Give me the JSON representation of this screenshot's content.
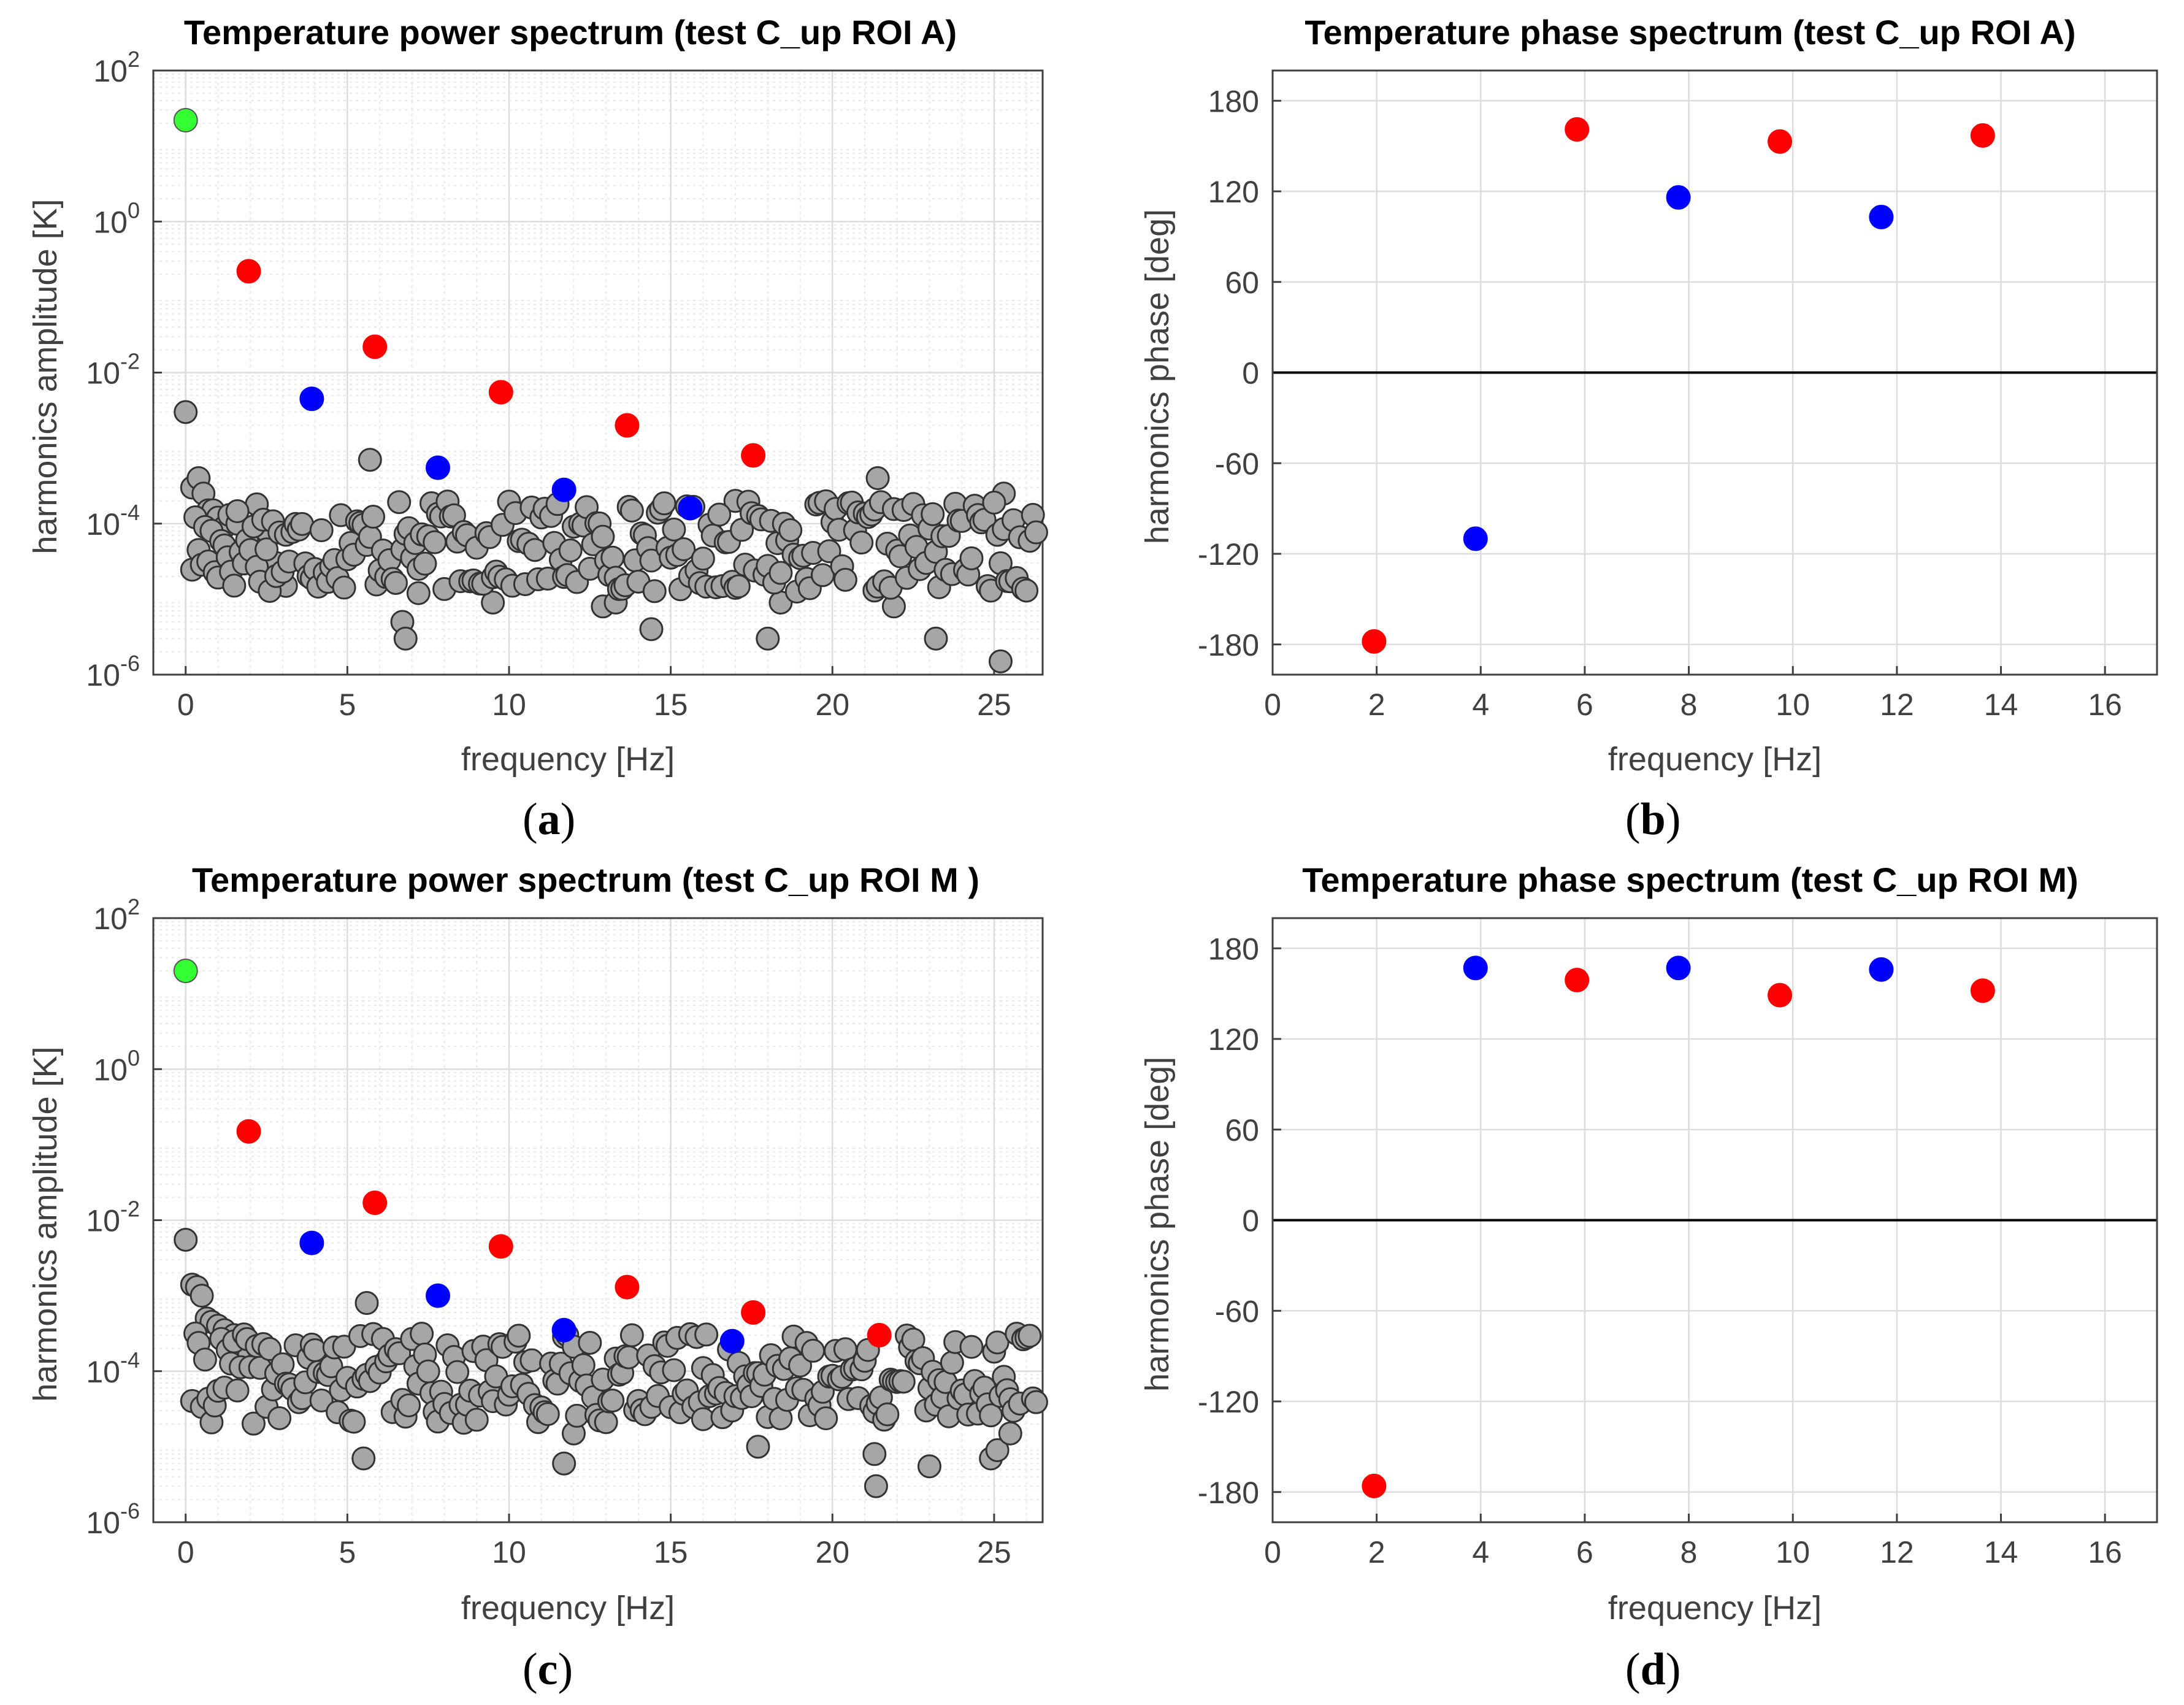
{
  "figure": {
    "panels": [
      "(a)",
      "(b)",
      "(c)",
      "(d)"
    ],
    "colors": {
      "fundamental": "#ff0000",
      "even_harmonic": "#0000ff",
      "mean": "#33ff33",
      "noise": "#a6a6a6",
      "marker_edge": "#333333",
      "grid": "#dcdcdc",
      "axis": "#404040"
    }
  },
  "chart_data": [
    {
      "panel": "(a)",
      "type": "scatter",
      "title": "Temperature power spectrum (test C_up ROI A)",
      "xlabel": "frequency [Hz]",
      "ylabel": "harmonics amplitude [K]",
      "xlim": [
        -1,
        26.5
      ],
      "ylim_log10": [
        -6,
        2
      ],
      "yscale": "log",
      "grid": true,
      "xticks": [
        0,
        5,
        10,
        15,
        20,
        25
      ],
      "yticks": [
        "10^-6",
        "10^-4",
        "10^-2",
        "10^0",
        "10^2"
      ],
      "series": [
        {
          "role": "mean",
          "color": "#33ff33",
          "points": [
            [
              0,
              22
            ]
          ]
        },
        {
          "role": "odd",
          "color": "#ff0000",
          "points": [
            [
              1.95,
              0.22
            ],
            [
              5.85,
              0.022
            ],
            [
              9.75,
              0.0055
            ],
            [
              13.65,
              0.002
            ],
            [
              17.55,
              0.0008
            ]
          ]
        },
        {
          "role": "even",
          "color": "#0000ff",
          "points": [
            [
              3.9,
              0.0045
            ],
            [
              7.8,
              0.00055
            ],
            [
              11.7,
              0.00028
            ],
            [
              15.6,
              0.00016
            ]
          ]
        },
        {
          "role": "noise",
          "color": "#a6a6a6",
          "seed": 17,
          "baseline": 5e-05,
          "points": [
            [
              0,
              0.003
            ],
            [
              0.2,
              0.0003
            ],
            [
              0.4,
              0.0004
            ],
            [
              0.55,
              0.00025
            ],
            [
              0.7,
              0.00015
            ],
            [
              0.85,
              0.00015
            ],
            [
              1.0,
              0.00012
            ],
            [
              1.2,
              9e-05
            ],
            [
              1.35,
              0.00013
            ],
            [
              1.6,
              0.0001
            ],
            [
              2.2,
              0.00018
            ],
            [
              2.5,
              8e-05
            ],
            [
              2.8,
              3e-05
            ],
            [
              3.1,
              1.5e-05
            ],
            [
              5.7,
              0.0007
            ],
            [
              6.7,
              5e-06
            ],
            [
              6.8,
              3e-06
            ],
            [
              7.2,
              1.2e-05
            ],
            [
              9.5,
              9e-06
            ],
            [
              12.9,
              8e-06
            ],
            [
              13.3,
              9e-06
            ],
            [
              14.4,
              4e-06
            ],
            [
              17.0,
              0.0002
            ],
            [
              18.0,
              3e-06
            ],
            [
              18.4,
              9e-06
            ],
            [
              21.4,
              0.0004
            ],
            [
              21.3,
              1.3e-05
            ],
            [
              21.9,
              8e-06
            ],
            [
              23.2,
              3e-06
            ],
            [
              25.2,
              1.5e-06
            ],
            [
              25.3,
              0.00025
            ]
          ]
        }
      ]
    },
    {
      "panel": "(b)",
      "type": "scatter",
      "title": "Temperature phase spectrum (test C_up ROI A)",
      "xlabel": "frequency [Hz]",
      "ylabel": "harmonics phase [deg]",
      "xlim": [
        0,
        17
      ],
      "ylim": [
        -200,
        200
      ],
      "grid": true,
      "xticks": [
        0,
        2,
        4,
        6,
        8,
        10,
        12,
        14,
        16
      ],
      "yticks": [
        -180,
        -120,
        -60,
        0,
        60,
        120,
        180
      ],
      "series": [
        {
          "role": "odd",
          "color": "#ff0000",
          "points": [
            [
              1.95,
              -178
            ],
            [
              5.85,
              161
            ],
            [
              9.75,
              153
            ],
            [
              13.65,
              157
            ]
          ]
        },
        {
          "role": "even",
          "color": "#0000ff",
          "points": [
            [
              3.9,
              -110
            ],
            [
              7.8,
              116
            ],
            [
              11.7,
              103
            ]
          ]
        }
      ]
    },
    {
      "panel": "(c)",
      "type": "scatter",
      "title": "Temperature power spectrum (test C_up ROI M )",
      "xlabel": "frequency [Hz]",
      "ylabel": "harmonics amplitude [K]",
      "xlim": [
        -1,
        26.5
      ],
      "ylim_log10": [
        -6,
        2
      ],
      "yscale": "log",
      "grid": true,
      "xticks": [
        0,
        5,
        10,
        15,
        20,
        25
      ],
      "yticks": [
        "10^-6",
        "10^-4",
        "10^-2",
        "10^0",
        "10^2"
      ],
      "series": [
        {
          "role": "mean",
          "color": "#33ff33",
          "points": [
            [
              0,
              20
            ]
          ]
        },
        {
          "role": "odd",
          "color": "#ff0000",
          "points": [
            [
              1.95,
              0.15
            ],
            [
              5.85,
              0.017
            ],
            [
              9.75,
              0.0045
            ],
            [
              13.65,
              0.0013
            ],
            [
              17.55,
              0.0006
            ],
            [
              21.45,
              0.0003
            ]
          ]
        },
        {
          "role": "even",
          "color": "#0000ff",
          "points": [
            [
              3.9,
              0.005
            ],
            [
              7.8,
              0.001
            ],
            [
              11.7,
              0.00035
            ],
            [
              16.9,
              0.00025
            ]
          ]
        },
        {
          "role": "noise",
          "color": "#a6a6a6",
          "seed": 41,
          "baseline": 8e-05,
          "points": [
            [
              0,
              0.0055
            ],
            [
              0.2,
              0.0014
            ],
            [
              0.35,
              0.0013
            ],
            [
              0.5,
              0.001
            ],
            [
              0.65,
              0.0005
            ],
            [
              0.8,
              0.00045
            ],
            [
              1.0,
              0.0004
            ],
            [
              1.2,
              0.00035
            ],
            [
              1.5,
              0.0003
            ],
            [
              1.7,
              0.0002
            ],
            [
              2.4,
              0.00015
            ],
            [
              5.6,
              0.0008
            ],
            [
              5.5,
              7e-06
            ],
            [
              11.7,
              6e-06
            ],
            [
              12.0,
              1.5e-05
            ],
            [
              16.0,
              0.00011
            ],
            [
              17.7,
              1e-05
            ],
            [
              21.3,
              8e-06
            ],
            [
              21.35,
              3e-06
            ],
            [
              23.0,
              5.5e-06
            ],
            [
              24.9,
              7e-06
            ],
            [
              25.1,
              9e-06
            ],
            [
              25.5,
              1.5e-05
            ]
          ]
        }
      ]
    },
    {
      "panel": "(d)",
      "type": "scatter",
      "title": "Temperature phase spectrum (test C_up ROI M)",
      "xlabel": "frequency [Hz]",
      "ylabel": "harmonics phase [deg]",
      "xlim": [
        0,
        17
      ],
      "ylim": [
        -200,
        200
      ],
      "grid": true,
      "xticks": [
        0,
        2,
        4,
        6,
        8,
        10,
        12,
        14,
        16
      ],
      "yticks": [
        -180,
        -120,
        -60,
        0,
        60,
        120,
        180
      ],
      "series": [
        {
          "role": "odd",
          "color": "#ff0000",
          "points": [
            [
              1.95,
              -176
            ],
            [
              5.85,
              159
            ],
            [
              9.75,
              149
            ],
            [
              13.65,
              152
            ]
          ]
        },
        {
          "role": "even",
          "color": "#0000ff",
          "points": [
            [
              3.9,
              167
            ],
            [
              7.8,
              167
            ],
            [
              11.7,
              166
            ]
          ]
        }
      ]
    }
  ]
}
